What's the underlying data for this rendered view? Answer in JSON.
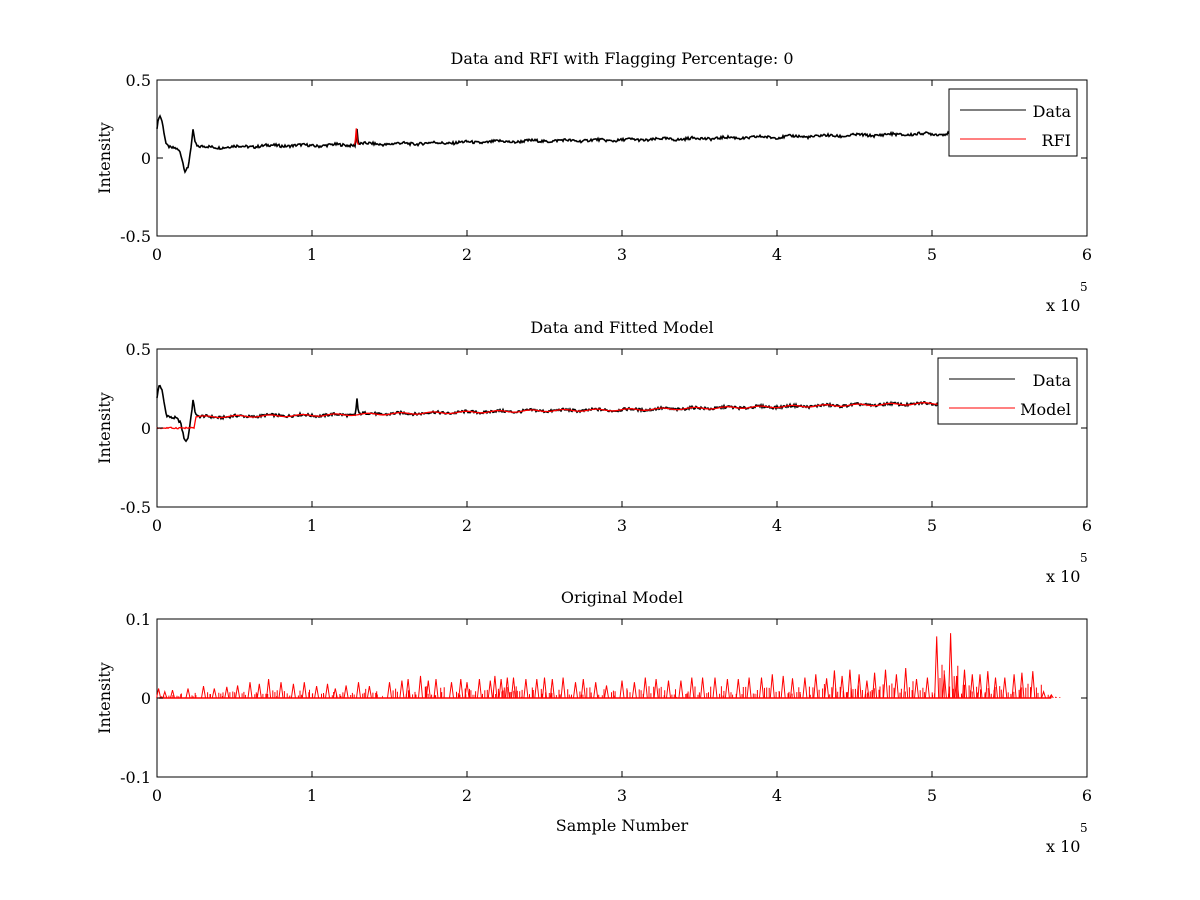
{
  "chart_data": [
    {
      "type": "line",
      "title": "Data and RFI with Flagging Percentage: 0",
      "xlabel": "",
      "ylabel": "Intensity",
      "xlim": [
        0,
        600000
      ],
      "ylim": [
        -0.5,
        0.5
      ],
      "x_ticks": [
        0,
        100000,
        200000,
        300000,
        400000,
        500000,
        600000
      ],
      "x_tick_labels": [
        "0",
        "1",
        "2",
        "3",
        "4",
        "5",
        "6"
      ],
      "y_ticks": [
        -0.5,
        0,
        0.5
      ],
      "y_tick_labels": [
        "-0.5",
        "0",
        "0.5"
      ],
      "x_multiplier": {
        "base": "x 10",
        "exponent": "5"
      },
      "legend": {
        "position": "top-right",
        "entries": [
          {
            "label": "Data",
            "color": "#000000"
          },
          {
            "label": "RFI",
            "color": "#ff0000"
          }
        ]
      },
      "series": [
        {
          "name": "Data",
          "color": "#000000",
          "style": "noisy",
          "x": [
            0,
            1500,
            3000,
            6000,
            9000,
            12000,
            15000,
            18000,
            20000,
            22000,
            23500,
            24000,
            26000,
            40000,
            60000,
            80000,
            100000,
            128000,
            129000,
            130000,
            150000,
            200000,
            250000,
            300000,
            350000,
            400000,
            450000,
            500000,
            530000,
            560000,
            575000
          ],
          "y": [
            0.2,
            0.28,
            0.25,
            0.08,
            0.06,
            0.06,
            0.04,
            -0.08,
            -0.06,
            0.08,
            0.2,
            0.12,
            0.07,
            0.07,
            0.075,
            0.08,
            0.08,
            0.085,
            0.19,
            0.09,
            0.09,
            0.1,
            0.11,
            0.115,
            0.125,
            0.135,
            0.145,
            0.155,
            0.16,
            0.165,
            0.17
          ]
        },
        {
          "name": "RFI",
          "color": "#ff0000",
          "style": "plain",
          "x": [
            127500,
            128000,
            128600,
            129200,
            130000
          ],
          "y": [
            0.085,
            0.12,
            0.19,
            0.1,
            0.085
          ]
        }
      ]
    },
    {
      "type": "line",
      "title": "Data and Fitted Model",
      "xlabel": "",
      "ylabel": "Intensity",
      "xlim": [
        0,
        600000
      ],
      "ylim": [
        -0.5,
        0.5
      ],
      "x_ticks": [
        0,
        100000,
        200000,
        300000,
        400000,
        500000,
        600000
      ],
      "x_tick_labels": [
        "0",
        "1",
        "2",
        "3",
        "4",
        "5",
        "6"
      ],
      "y_ticks": [
        -0.5,
        0,
        0.5
      ],
      "y_tick_labels": [
        "-0.5",
        "0",
        "0.5"
      ],
      "x_multiplier": {
        "base": "x 10",
        "exponent": "5"
      },
      "legend": {
        "position": "top-right",
        "entries": [
          {
            "label": "Data",
            "color": "#000000"
          },
          {
            "label": "Model",
            "color": "#ff0000"
          }
        ]
      },
      "series": [
        {
          "name": "Data",
          "color": "#000000",
          "style": "noisy",
          "x": [
            0,
            1500,
            3000,
            6000,
            9000,
            12000,
            15000,
            18000,
            20000,
            22000,
            23500,
            24000,
            26000,
            40000,
            60000,
            80000,
            100000,
            128000,
            129000,
            130000,
            150000,
            200000,
            250000,
            300000,
            350000,
            400000,
            450000,
            500000,
            530000,
            560000,
            575000
          ],
          "y": [
            0.2,
            0.28,
            0.25,
            0.08,
            0.06,
            0.06,
            0.04,
            -0.08,
            -0.06,
            0.08,
            0.2,
            0.12,
            0.07,
            0.07,
            0.075,
            0.08,
            0.08,
            0.085,
            0.19,
            0.09,
            0.09,
            0.1,
            0.11,
            0.115,
            0.125,
            0.135,
            0.145,
            0.155,
            0.16,
            0.165,
            0.17
          ]
        },
        {
          "name": "Model",
          "color": "#ff0000",
          "style": "wavy",
          "x": [
            0,
            24000,
            25000,
            60000,
            100000,
            150000,
            200000,
            250000,
            300000,
            350000,
            400000,
            450000,
            500000,
            540000,
            575000
          ],
          "y": [
            0.0,
            0.0,
            0.07,
            0.075,
            0.08,
            0.09,
            0.1,
            0.11,
            0.115,
            0.125,
            0.135,
            0.145,
            0.155,
            0.162,
            0.17
          ]
        }
      ]
    },
    {
      "type": "line",
      "title": "Original Model",
      "xlabel": "Sample Number",
      "ylabel": "Intensity",
      "xlim": [
        0,
        600000
      ],
      "ylim": [
        -0.1,
        0.1
      ],
      "x_ticks": [
        0,
        100000,
        200000,
        300000,
        400000,
        500000,
        600000
      ],
      "x_tick_labels": [
        "0",
        "1",
        "2",
        "3",
        "4",
        "5",
        "6"
      ],
      "y_ticks": [
        -0.1,
        0,
        0.1
      ],
      "y_tick_labels": [
        "-0.1",
        "0",
        "0.1"
      ],
      "x_multiplier": {
        "base": "x 10",
        "exponent": "5"
      },
      "series": [
        {
          "name": "",
          "color": "#ff0000",
          "style": "spikes",
          "x": [
            1000,
            5000,
            10000,
            20000,
            30000,
            37000,
            45000,
            52000,
            60000,
            66000,
            72000,
            80000,
            88000,
            95000,
            103000,
            110000,
            115000,
            122000,
            130000,
            137000,
            150000,
            158000,
            162000,
            170000,
            175000,
            180000,
            190000,
            196000,
            200000,
            208000,
            215000,
            218000,
            222000,
            226000,
            230000,
            238000,
            245000,
            250000,
            255000,
            262000,
            270000,
            275000,
            283000,
            290000,
            300000,
            308000,
            315000,
            322000,
            330000,
            338000,
            345000,
            352000,
            360000,
            368000,
            375000,
            382000,
            390000,
            397000,
            404000,
            410000,
            418000,
            425000,
            432000,
            437000,
            442000,
            447000,
            453000,
            458000,
            463000,
            470000,
            477000,
            483000,
            490000,
            497000,
            503000,
            508000,
            512000,
            516000,
            521000,
            526000,
            531000,
            536000,
            541000,
            547000,
            553000,
            558000,
            565000,
            572000,
            577000
          ],
          "y": [
            0.012,
            0.008,
            0.01,
            0.012,
            0.015,
            0.012,
            0.014,
            0.016,
            0.02,
            0.018,
            0.024,
            0.02,
            0.018,
            0.02,
            0.015,
            0.018,
            0.012,
            0.016,
            0.02,
            0.015,
            0.02,
            0.022,
            0.024,
            0.028,
            0.022,
            0.024,
            0.02,
            0.024,
            0.02,
            0.024,
            0.022,
            0.028,
            0.024,
            0.026,
            0.026,
            0.024,
            0.024,
            0.026,
            0.024,
            0.026,
            0.02,
            0.024,
            0.02,
            0.016,
            0.022,
            0.02,
            0.026,
            0.024,
            0.022,
            0.022,
            0.026,
            0.026,
            0.026,
            0.024,
            0.024,
            0.026,
            0.026,
            0.03,
            0.028,
            0.025,
            0.026,
            0.03,
            0.025,
            0.035,
            0.028,
            0.036,
            0.03,
            0.022,
            0.032,
            0.036,
            0.03,
            0.038,
            0.024,
            0.026,
            0.078,
            0.03,
            0.082,
            0.028,
            0.036,
            0.03,
            0.03,
            0.034,
            0.026,
            0.026,
            0.03,
            0.032,
            0.034,
            0.008,
            0.004
          ]
        }
      ]
    }
  ]
}
